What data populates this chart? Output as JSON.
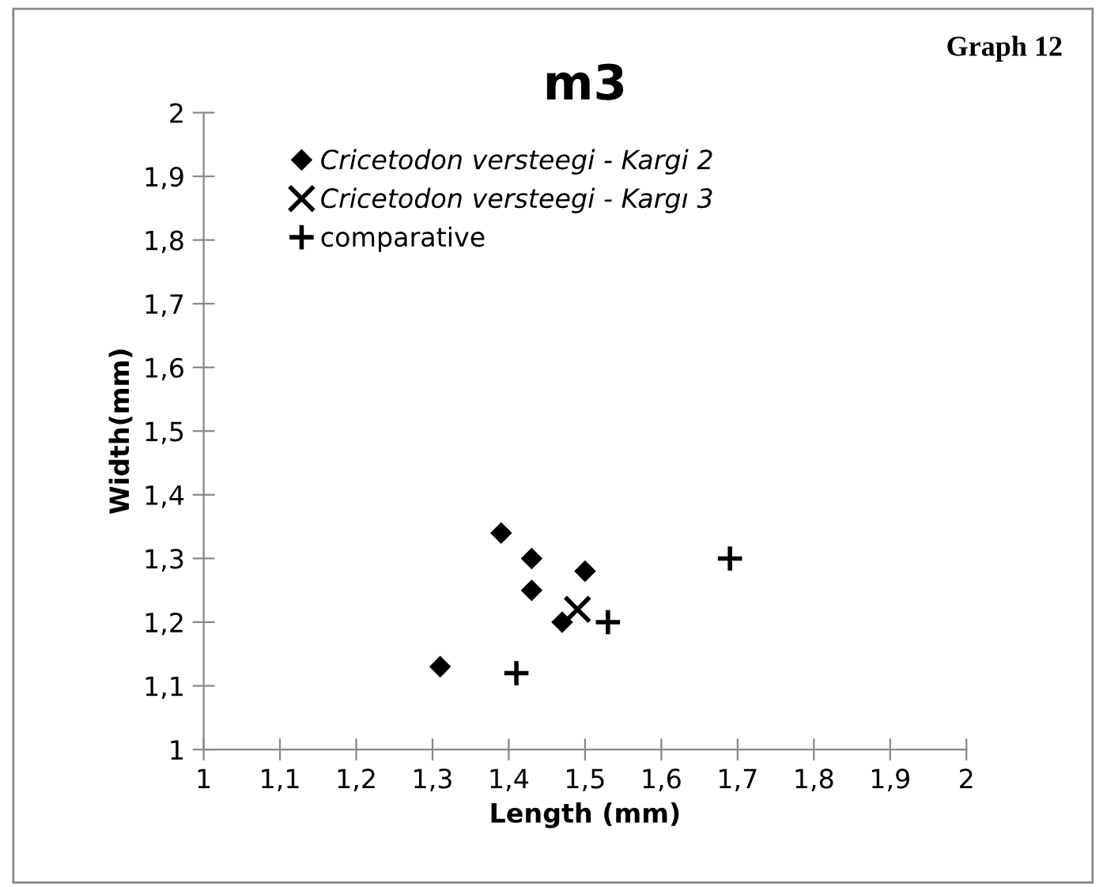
{
  "chart_data": {
    "type": "scatter",
    "title": "m3",
    "xlabel": "Length (mm)",
    "ylabel": "Width(mm)",
    "annotations": [
      "Graph 12"
    ],
    "xlim": [
      1,
      2
    ],
    "ylim": [
      1,
      2
    ],
    "xticks": [
      1,
      {
        "value": 1.1,
        "label": "1,1"
      },
      {
        "value": 1.2,
        "label": "1,2"
      },
      {
        "value": 1.3,
        "label": "1,3"
      },
      {
        "value": 1.4,
        "label": "1,4"
      },
      {
        "value": 1.5,
        "label": "1,5"
      },
      {
        "value": 1.6,
        "label": "1,6"
      },
      {
        "value": 1.7,
        "label": "1,7"
      },
      {
        "value": 1.8,
        "label": "1,8"
      },
      {
        "value": 1.9,
        "label": "1,9"
      },
      2
    ],
    "yticks": [
      1,
      {
        "value": 1.1,
        "label": "1,1"
      },
      {
        "value": 1.2,
        "label": "1,2"
      },
      {
        "value": 1.3,
        "label": "1,3"
      },
      {
        "value": 1.4,
        "label": "1,4"
      },
      {
        "value": 1.5,
        "label": "1,5"
      },
      {
        "value": 1.6,
        "label": "1,6"
      },
      {
        "value": 1.7,
        "label": "1,7"
      },
      {
        "value": 1.8,
        "label": "1,8"
      },
      {
        "value": 1.9,
        "label": "1,9"
      },
      2
    ],
    "legend": "top left",
    "grid": false,
    "series": [
      {
        "name": "Cricetodon versteegi - Kargi 2",
        "color": "#000000",
        "marker": "diamond",
        "x": [
          1.39,
          1.43,
          1.5,
          1.43,
          1.47,
          1.31
        ],
        "values": [
          1.34,
          1.3,
          1.28,
          1.25,
          1.2,
          1.13
        ]
      },
      {
        "name": "Cricetodon versteegi - Kargı 3",
        "color": "#000000",
        "marker": "cross",
        "x": [
          1.49
        ],
        "values": [
          1.22
        ]
      },
      {
        "name": "comparative",
        "color": "#000000",
        "marker": "plus",
        "x": [
          1.53,
          1.41,
          1.69
        ],
        "values": [
          1.2,
          1.12,
          1.3
        ]
      }
    ]
  }
}
